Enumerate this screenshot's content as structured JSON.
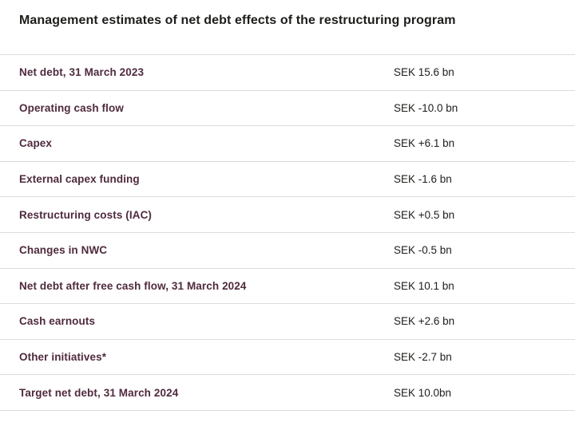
{
  "title": "Management estimates of net debt effects of the restructuring program",
  "table": {
    "rows": [
      {
        "label": "Net debt, 31 March 2023",
        "value": "SEK 15.6 bn"
      },
      {
        "label": "Operating cash flow",
        "value": "SEK -10.0 bn"
      },
      {
        "label": "Capex",
        "value": "SEK +6.1 bn"
      },
      {
        "label": "External capex funding",
        "value": "SEK -1.6 bn"
      },
      {
        "label": "Restructuring costs (IAC)",
        "value": "SEK +0.5 bn"
      },
      {
        "label": "Changes in NWC",
        "value": "SEK -0.5 bn"
      },
      {
        "label": "Net debt after free cash flow, 31 March 2024",
        "value": "SEK 10.1 bn"
      },
      {
        "label": "Cash earnouts",
        "value": "SEK +2.6 bn"
      },
      {
        "label": "Other initiatives*",
        "value": "SEK -2.7 bn"
      },
      {
        "label": "Target net debt, 31 March 2024",
        "value": "SEK 10.0bn"
      }
    ],
    "colors": {
      "label_text": "#4f2a3d",
      "value_text": "#1d1d1b",
      "divider": "#dcdcdc"
    }
  }
}
